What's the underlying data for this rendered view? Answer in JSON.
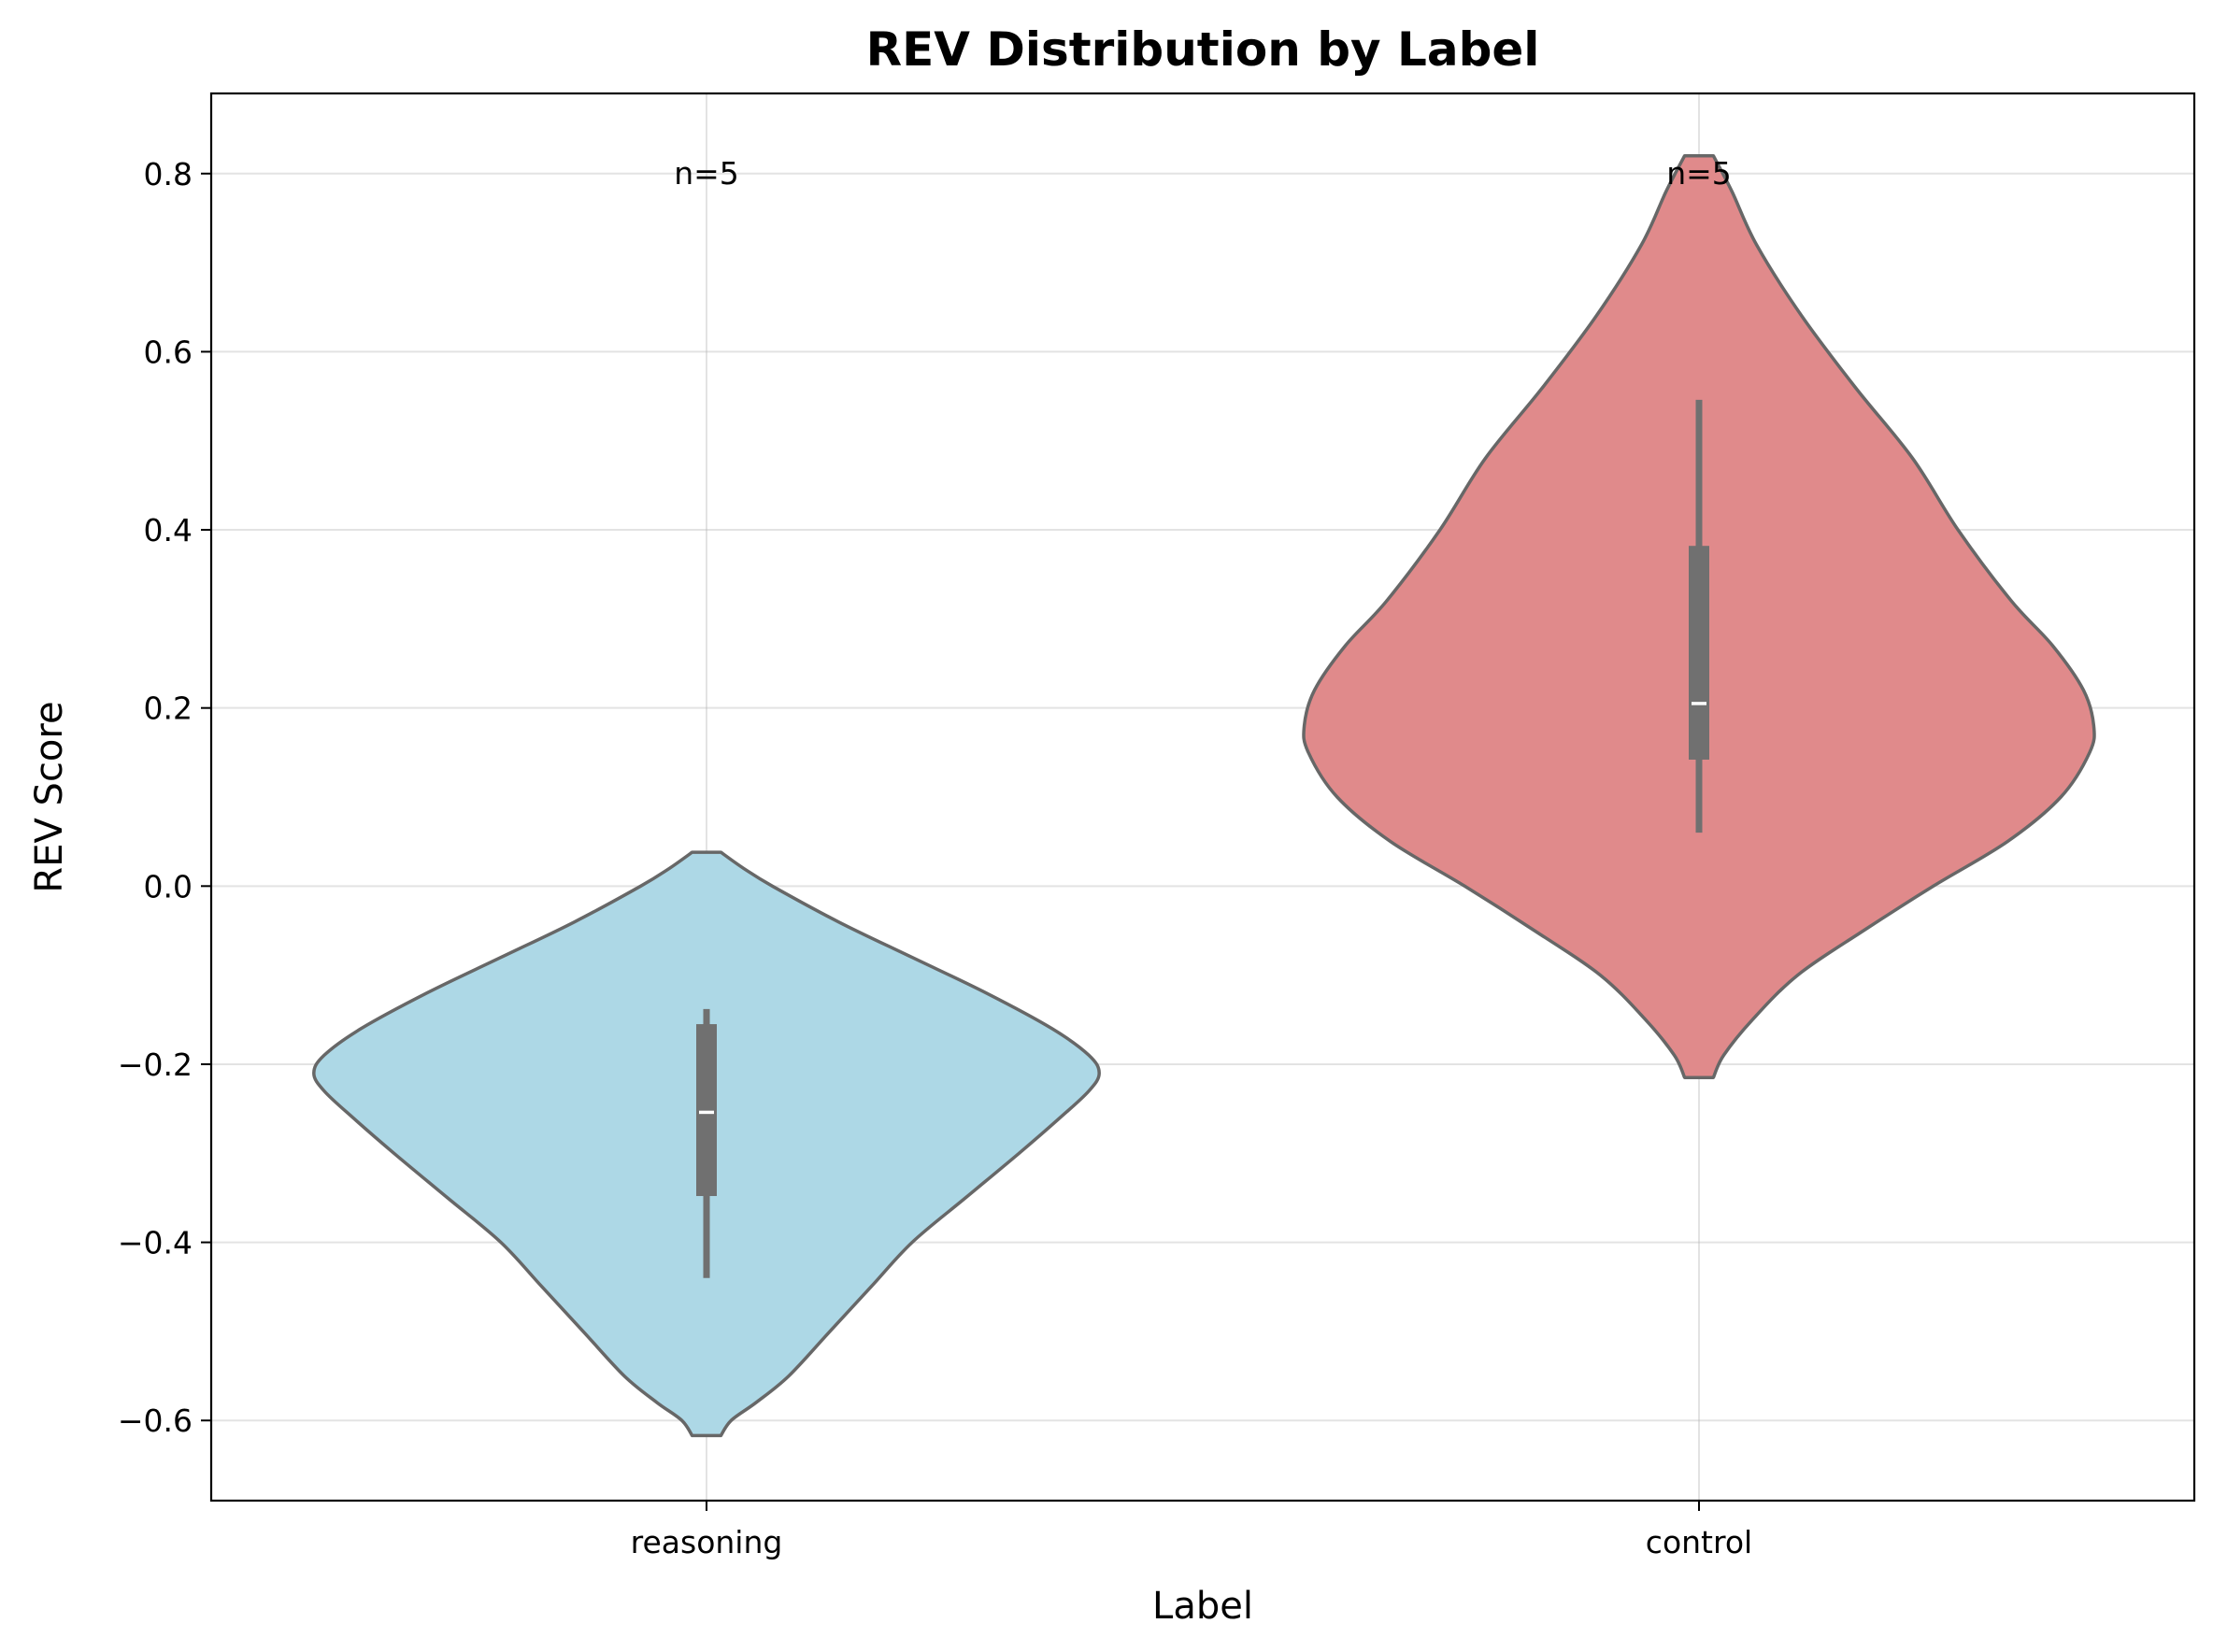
{
  "chart_data": {
    "type": "violin",
    "title": "REV Distribution by Label",
    "xlabel": "Label",
    "ylabel": "REV Score",
    "ylim": [
      -0.69,
      0.89
    ],
    "yticks": [
      {
        "value": -0.6,
        "label": "−0.6"
      },
      {
        "value": -0.4,
        "label": "−0.4"
      },
      {
        "value": -0.2,
        "label": "−0.2"
      },
      {
        "value": 0.0,
        "label": "0.0"
      },
      {
        "value": 0.2,
        "label": "0.2"
      },
      {
        "value": 0.4,
        "label": "0.4"
      },
      {
        "value": 0.6,
        "label": "0.6"
      },
      {
        "value": 0.8,
        "label": "0.8"
      }
    ],
    "categories": [
      "reasoning",
      "control"
    ],
    "grid": true,
    "violins": [
      {
        "category": "reasoning",
        "color": "#add8e6",
        "count_label": "n=5",
        "ymin": -0.617,
        "ymax": 0.038,
        "whisker_low": -0.44,
        "q1": -0.348,
        "median": -0.254,
        "q3": -0.155,
        "whisker_high": -0.138,
        "density": [
          [
            -0.617,
            0.035
          ],
          [
            -0.6,
            0.06
          ],
          [
            -0.58,
            0.12
          ],
          [
            -0.55,
            0.2
          ],
          [
            -0.5,
            0.3
          ],
          [
            -0.45,
            0.4
          ],
          [
            -0.4,
            0.5
          ],
          [
            -0.35,
            0.63
          ],
          [
            -0.3,
            0.76
          ],
          [
            -0.26,
            0.86
          ],
          [
            -0.23,
            0.93
          ],
          [
            -0.21,
            0.955
          ],
          [
            -0.19,
            0.93
          ],
          [
            -0.16,
            0.84
          ],
          [
            -0.12,
            0.68
          ],
          [
            -0.08,
            0.5
          ],
          [
            -0.04,
            0.32
          ],
          [
            0.0,
            0.16
          ],
          [
            0.02,
            0.09
          ],
          [
            0.038,
            0.035
          ]
        ]
      },
      {
        "category": "control",
        "color": "#e08a8b",
        "count_label": "n=5",
        "ymin": -0.215,
        "ymax": 0.82,
        "whisker_low": 0.06,
        "q1": 0.142,
        "median": 0.205,
        "q3": 0.382,
        "whisker_high": 0.546,
        "density": [
          [
            -0.215,
            0.035
          ],
          [
            -0.19,
            0.06
          ],
          [
            -0.15,
            0.13
          ],
          [
            -0.1,
            0.24
          ],
          [
            -0.05,
            0.4
          ],
          [
            0.0,
            0.57
          ],
          [
            0.05,
            0.75
          ],
          [
            0.1,
            0.88
          ],
          [
            0.15,
            0.95
          ],
          [
            0.18,
            0.96
          ],
          [
            0.22,
            0.935
          ],
          [
            0.27,
            0.86
          ],
          [
            0.32,
            0.76
          ],
          [
            0.4,
            0.63
          ],
          [
            0.48,
            0.52
          ],
          [
            0.56,
            0.38
          ],
          [
            0.64,
            0.25
          ],
          [
            0.72,
            0.14
          ],
          [
            0.78,
            0.08
          ],
          [
            0.82,
            0.035
          ]
        ]
      }
    ],
    "colors": {
      "violin_edge": "#676767",
      "box": "#707070",
      "median": "#ffffff"
    }
  }
}
